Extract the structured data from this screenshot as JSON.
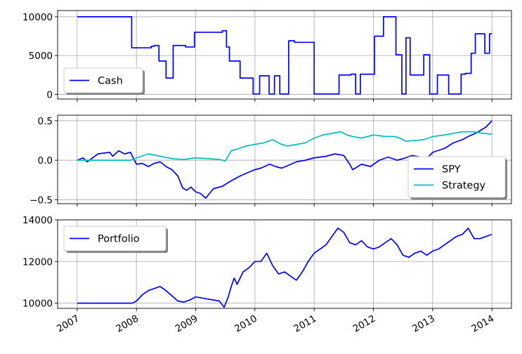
{
  "chart_data": [
    {
      "type": "line",
      "panel": "cash",
      "ylim": [
        -600,
        10800
      ],
      "yticks": [
        "0",
        "5000",
        "10000"
      ],
      "ytick_values": [
        0,
        5000,
        10000
      ],
      "grid": true,
      "legend_placement": "lower-left",
      "series": [
        {
          "name": "Cash",
          "color": "#0000ff",
          "step": true,
          "x": [
            2007.0,
            2007.92,
            2007.92,
            2008.25,
            2008.25,
            2008.3,
            2008.3,
            2008.38,
            2008.38,
            2008.5,
            2008.5,
            2008.62,
            2008.62,
            2008.83,
            2008.83,
            2008.98,
            2008.98,
            2009.45,
            2009.45,
            2009.52,
            2009.52,
            2009.57,
            2009.57,
            2009.75,
            2009.75,
            2009.97,
            2009.97,
            2010.08,
            2010.08,
            2010.24,
            2010.24,
            2010.33,
            2010.33,
            2010.42,
            2010.42,
            2010.57,
            2010.57,
            2010.67,
            2010.67,
            2011.0,
            2011.0,
            2011.42,
            2011.42,
            2011.62,
            2011.62,
            2011.7,
            2011.7,
            2011.78,
            2011.78,
            2012.02,
            2012.02,
            2012.17,
            2012.17,
            2012.38,
            2012.38,
            2012.48,
            2012.48,
            2012.55,
            2012.55,
            2012.62,
            2012.62,
            2012.85,
            2012.85,
            2012.95,
            2012.95,
            2013.08,
            2013.08,
            2013.27,
            2013.27,
            2013.48,
            2013.48,
            2013.55,
            2013.55,
            2013.65,
            2013.65,
            2013.72,
            2013.72,
            2013.88,
            2013.88,
            2013.96,
            2013.96,
            2014.0
          ],
          "y": [
            10000,
            10000,
            6000,
            6000,
            6200,
            6200,
            6300,
            6300,
            4300,
            4300,
            2100,
            2100,
            6300,
            6300,
            6100,
            6100,
            8000,
            8000,
            8200,
            8200,
            6100,
            6100,
            4300,
            4300,
            2100,
            2100,
            50,
            50,
            2400,
            2400,
            50,
            50,
            2400,
            2400,
            50,
            50,
            6900,
            6900,
            6700,
            6700,
            50,
            50,
            2500,
            2500,
            2600,
            2600,
            50,
            50,
            2600,
            2600,
            7500,
            7500,
            10000,
            10000,
            5100,
            5100,
            50,
            50,
            7300,
            7300,
            2500,
            2500,
            5100,
            5100,
            50,
            50,
            2500,
            2500,
            50,
            50,
            2600,
            2600,
            2700,
            2700,
            5300,
            5300,
            7800,
            7800,
            5300,
            5300,
            7800,
            7800
          ]
        }
      ]
    },
    {
      "type": "line",
      "panel": "returns",
      "ylim": [
        -0.55,
        0.57
      ],
      "yticks": [
        "−0.5",
        "0.0",
        "0.5"
      ],
      "ytick_values": [
        -0.5,
        0.0,
        0.5
      ],
      "grid": true,
      "legend_placement": "lower-right",
      "series": [
        {
          "name": "SPY",
          "color": "#0000ff",
          "x": [
            2007.0,
            2007.1,
            2007.17,
            2007.35,
            2007.55,
            2007.6,
            2007.7,
            2007.8,
            2007.9,
            2008.0,
            2008.1,
            2008.2,
            2008.3,
            2008.4,
            2008.5,
            2008.6,
            2008.7,
            2008.78,
            2008.85,
            2008.92,
            2009.0,
            2009.08,
            2009.17,
            2009.3,
            2009.45,
            2009.6,
            2009.75,
            2009.9,
            2010.0,
            2010.1,
            2010.25,
            2010.35,
            2010.45,
            2010.55,
            2010.7,
            2010.85,
            2011.0,
            2011.2,
            2011.35,
            2011.5,
            2011.6,
            2011.65,
            2011.8,
            2011.95,
            2012.1,
            2012.25,
            2012.4,
            2012.5,
            2012.65,
            2012.8,
            2012.9,
            2013.0,
            2013.2,
            2013.35,
            2013.5,
            2013.6,
            2013.75,
            2013.9,
            2014.0
          ],
          "y": [
            0.0,
            0.03,
            -0.02,
            0.08,
            0.1,
            0.05,
            0.12,
            0.08,
            0.1,
            -0.05,
            -0.04,
            -0.08,
            -0.04,
            -0.02,
            -0.08,
            -0.12,
            -0.2,
            -0.35,
            -0.38,
            -0.34,
            -0.4,
            -0.42,
            -0.48,
            -0.36,
            -0.33,
            -0.26,
            -0.2,
            -0.15,
            -0.12,
            -0.1,
            -0.05,
            -0.08,
            -0.1,
            -0.07,
            -0.02,
            0.0,
            0.03,
            0.05,
            0.08,
            0.06,
            -0.05,
            -0.12,
            -0.05,
            -0.08,
            0.0,
            0.04,
            0.0,
            0.02,
            0.06,
            0.04,
            0.02,
            0.1,
            0.15,
            0.22,
            0.26,
            0.3,
            0.35,
            0.42,
            0.5
          ]
        },
        {
          "name": "Strategy",
          "color": "#00bfbf",
          "x": [
            2007.0,
            2007.9,
            2008.0,
            2008.2,
            2008.4,
            2008.6,
            2008.8,
            2009.0,
            2009.2,
            2009.4,
            2009.5,
            2009.6,
            2009.7,
            2009.85,
            2010.0,
            2010.15,
            2010.3,
            2010.45,
            2010.55,
            2010.7,
            2010.85,
            2011.0,
            2011.15,
            2011.3,
            2011.45,
            2011.55,
            2011.65,
            2011.8,
            2012.0,
            2012.2,
            2012.35,
            2012.45,
            2012.55,
            2012.7,
            2012.85,
            2013.0,
            2013.2,
            2013.35,
            2013.5,
            2013.7,
            2013.85,
            2014.0
          ],
          "y": [
            0.0,
            0.0,
            0.03,
            0.08,
            0.05,
            0.02,
            0.01,
            0.03,
            0.02,
            0.01,
            -0.01,
            0.12,
            0.14,
            0.18,
            0.2,
            0.22,
            0.26,
            0.2,
            0.18,
            0.2,
            0.22,
            0.28,
            0.32,
            0.34,
            0.36,
            0.32,
            0.3,
            0.28,
            0.32,
            0.3,
            0.3,
            0.28,
            0.24,
            0.25,
            0.26,
            0.3,
            0.32,
            0.34,
            0.36,
            0.36,
            0.34,
            0.33
          ]
        }
      ]
    },
    {
      "type": "line",
      "panel": "portfolio",
      "ylim": [
        9750,
        14000
      ],
      "yticks": [
        "10000",
        "12000",
        "14000"
      ],
      "ytick_values": [
        10000,
        12000,
        14000
      ],
      "xticks": [
        "2007",
        "2008",
        "2009",
        "2010",
        "2011",
        "2012",
        "2013",
        "2014"
      ],
      "xtick_values": [
        2007,
        2008,
        2009,
        2010,
        2011,
        2012,
        2013,
        2014
      ],
      "xlim": [
        2006.67,
        2014.33
      ],
      "grid": true,
      "legend_placement": "top-left",
      "series": [
        {
          "name": "Portfolio",
          "color": "#0000ff",
          "x": [
            2007.0,
            2007.93,
            2008.0,
            2008.1,
            2008.2,
            2008.3,
            2008.4,
            2008.5,
            2008.6,
            2008.7,
            2008.8,
            2008.9,
            2009.0,
            2009.1,
            2009.2,
            2009.3,
            2009.4,
            2009.48,
            2009.55,
            2009.6,
            2009.65,
            2009.7,
            2009.8,
            2009.9,
            2010.0,
            2010.1,
            2010.2,
            2010.3,
            2010.4,
            2010.5,
            2010.6,
            2010.7,
            2010.8,
            2010.9,
            2011.0,
            2011.1,
            2011.2,
            2011.3,
            2011.4,
            2011.5,
            2011.6,
            2011.7,
            2011.8,
            2011.9,
            2012.0,
            2012.1,
            2012.2,
            2012.3,
            2012.4,
            2012.5,
            2012.6,
            2012.7,
            2012.8,
            2012.9,
            2013.0,
            2013.1,
            2013.2,
            2013.3,
            2013.4,
            2013.5,
            2013.6,
            2013.7,
            2013.8,
            2013.9,
            2014.0
          ],
          "y": [
            10000,
            10000,
            10100,
            10400,
            10600,
            10700,
            10800,
            10600,
            10350,
            10100,
            10050,
            10150,
            10300,
            10250,
            10200,
            10150,
            10100,
            9800,
            10300,
            10800,
            11200,
            10900,
            11500,
            11700,
            12000,
            12000,
            12400,
            11800,
            11400,
            11500,
            11300,
            11100,
            11500,
            12000,
            12400,
            12600,
            12800,
            13200,
            13600,
            13400,
            12900,
            12800,
            13000,
            12700,
            12600,
            12700,
            12900,
            13100,
            12800,
            12300,
            12200,
            12400,
            12500,
            12300,
            12500,
            12600,
            12800,
            13000,
            13200,
            13300,
            13600,
            13100,
            13100,
            13200,
            13300
          ]
        }
      ]
    }
  ]
}
